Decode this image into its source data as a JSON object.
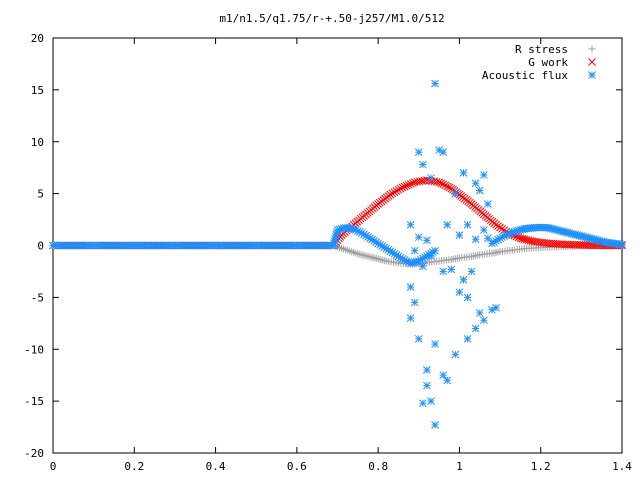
{
  "chart_data": {
    "type": "scatter",
    "title": "m1/n1.5/q1.75/r-+.50-j257/M1.0/512",
    "xlabel": "",
    "ylabel": "",
    "xlim": [
      0,
      1.4
    ],
    "ylim": [
      -20,
      20
    ],
    "x_ticks": [
      "0",
      "0.2",
      "0.4",
      "0.6",
      "0.8",
      "1",
      "1.2",
      "1.4"
    ],
    "y_ticks": [
      "20",
      "15",
      "10",
      "5",
      "0",
      "-5",
      "-10",
      "-15",
      "-20"
    ],
    "grid": false,
    "legend_position": "top-right",
    "series": [
      {
        "name": "R stress",
        "marker": "plus",
        "color": "#a0a0a0",
        "points": [
          [
            0.0,
            0
          ],
          [
            0.1,
            0
          ],
          [
            0.2,
            0
          ],
          [
            0.3,
            0
          ],
          [
            0.4,
            0
          ],
          [
            0.5,
            0
          ],
          [
            0.6,
            0
          ],
          [
            0.69,
            0
          ],
          [
            0.72,
            -0.4
          ],
          [
            0.75,
            -0.8
          ],
          [
            0.78,
            -1.1
          ],
          [
            0.8,
            -1.3
          ],
          [
            0.82,
            -1.5
          ],
          [
            0.85,
            -1.7
          ],
          [
            0.88,
            -1.8
          ],
          [
            0.9,
            -1.75
          ],
          [
            0.92,
            -1.65
          ],
          [
            0.95,
            -1.5
          ],
          [
            0.98,
            -1.35
          ],
          [
            1.0,
            -1.2
          ],
          [
            1.03,
            -1.05
          ],
          [
            1.05,
            -0.9
          ],
          [
            1.08,
            -0.75
          ],
          [
            1.1,
            -0.6
          ],
          [
            1.13,
            -0.45
          ],
          [
            1.16,
            -0.3
          ],
          [
            1.2,
            -0.2
          ],
          [
            1.25,
            -0.1
          ],
          [
            1.3,
            -0.05
          ],
          [
            1.35,
            0
          ],
          [
            1.4,
            0
          ]
        ]
      },
      {
        "name": "G work",
        "marker": "cross",
        "color": "#ff0000",
        "points": [
          [
            0.0,
            0
          ],
          [
            0.1,
            0
          ],
          [
            0.2,
            0
          ],
          [
            0.3,
            0
          ],
          [
            0.4,
            0
          ],
          [
            0.5,
            0
          ],
          [
            0.6,
            0
          ],
          [
            0.69,
            0
          ],
          [
            0.71,
            1.0
          ],
          [
            0.74,
            2.0
          ],
          [
            0.77,
            3.0
          ],
          [
            0.8,
            4.0
          ],
          [
            0.83,
            4.9
          ],
          [
            0.86,
            5.6
          ],
          [
            0.89,
            6.1
          ],
          [
            0.92,
            6.3
          ],
          [
            0.95,
            6.1
          ],
          [
            0.98,
            5.5
          ],
          [
            1.0,
            4.9
          ],
          [
            1.03,
            4.0
          ],
          [
            1.06,
            3.0
          ],
          [
            1.09,
            2.0
          ],
          [
            1.12,
            1.2
          ],
          [
            1.15,
            0.7
          ],
          [
            1.18,
            0.4
          ],
          [
            1.22,
            0.2
          ],
          [
            1.26,
            0.1
          ],
          [
            1.3,
            0.05
          ],
          [
            1.35,
            0
          ],
          [
            1.4,
            0
          ]
        ]
      },
      {
        "name": "Acoustic flux",
        "marker": "star",
        "color": "#1e90ff",
        "points": [
          [
            0.0,
            0
          ],
          [
            0.05,
            0
          ],
          [
            0.1,
            0
          ],
          [
            0.15,
            0
          ],
          [
            0.2,
            0
          ],
          [
            0.25,
            0
          ],
          [
            0.3,
            0
          ],
          [
            0.35,
            0
          ],
          [
            0.4,
            0
          ],
          [
            0.45,
            0
          ],
          [
            0.5,
            0
          ],
          [
            0.55,
            0
          ],
          [
            0.6,
            0
          ],
          [
            0.65,
            0
          ],
          [
            0.69,
            0
          ],
          [
            0.7,
            1.5
          ],
          [
            0.72,
            1.7
          ],
          [
            0.74,
            1.6
          ],
          [
            0.76,
            1.2
          ],
          [
            0.78,
            0.7
          ],
          [
            0.8,
            0.2
          ],
          [
            0.82,
            -0.3
          ],
          [
            0.84,
            -0.8
          ],
          [
            0.86,
            -1.3
          ],
          [
            0.88,
            -1.7
          ],
          [
            0.9,
            -1.5
          ],
          [
            0.92,
            -1.0
          ],
          [
            0.94,
            -0.5
          ],
          [
            1.08,
            0.2
          ],
          [
            1.1,
            0.7
          ],
          [
            1.12,
            1.1
          ],
          [
            1.14,
            1.4
          ],
          [
            1.16,
            1.6
          ],
          [
            1.18,
            1.7
          ],
          [
            1.2,
            1.75
          ],
          [
            1.22,
            1.7
          ],
          [
            1.24,
            1.5
          ],
          [
            1.26,
            1.3
          ],
          [
            1.28,
            1.1
          ],
          [
            1.3,
            0.9
          ],
          [
            1.32,
            0.7
          ],
          [
            1.34,
            0.5
          ],
          [
            1.36,
            0.3
          ],
          [
            1.38,
            0.2
          ],
          [
            1.4,
            0.1
          ],
          [
            0.94,
            15.6
          ],
          [
            0.9,
            9.0
          ],
          [
            0.91,
            7.8
          ],
          [
            0.93,
            6.5
          ],
          [
            0.95,
            9.2
          ],
          [
            0.96,
            9.0
          ],
          [
            0.99,
            5.0
          ],
          [
            1.01,
            7.0
          ],
          [
            1.04,
            6.0
          ],
          [
            1.06,
            6.8
          ],
          [
            1.05,
            5.3
          ],
          [
            1.07,
            4.0
          ],
          [
            0.88,
            2.0
          ],
          [
            0.9,
            0.8
          ],
          [
            0.92,
            0.5
          ],
          [
            0.97,
            2.0
          ],
          [
            1.0,
            1.0
          ],
          [
            1.02,
            2.0
          ],
          [
            1.04,
            0.6
          ],
          [
            1.06,
            1.5
          ],
          [
            1.07,
            0.7
          ],
          [
            0.89,
            -0.5
          ],
          [
            0.91,
            -2.0
          ],
          [
            0.93,
            -1.0
          ],
          [
            0.96,
            -2.5
          ],
          [
            0.98,
            -2.3
          ],
          [
            1.01,
            -3.3
          ],
          [
            1.03,
            -2.5
          ],
          [
            0.88,
            -4.0
          ],
          [
            0.89,
            -5.5
          ],
          [
            0.88,
            -7.0
          ],
          [
            0.9,
            -9.0
          ],
          [
            0.92,
            -12.0
          ],
          [
            0.94,
            -9.5
          ],
          [
            0.96,
            -12.5
          ],
          [
            0.97,
            -13.0
          ],
          [
            0.99,
            -10.5
          ],
          [
            1.0,
            -4.5
          ],
          [
            1.02,
            -5.0
          ],
          [
            1.02,
            -9.0
          ],
          [
            1.04,
            -8.0
          ],
          [
            1.05,
            -6.5
          ],
          [
            1.06,
            -7.2
          ],
          [
            1.08,
            -6.2
          ],
          [
            1.09,
            -6.0
          ],
          [
            0.92,
            -13.5
          ],
          [
            0.93,
            -15.0
          ],
          [
            0.91,
            -15.2
          ],
          [
            0.94,
            -17.3
          ]
        ]
      }
    ]
  }
}
